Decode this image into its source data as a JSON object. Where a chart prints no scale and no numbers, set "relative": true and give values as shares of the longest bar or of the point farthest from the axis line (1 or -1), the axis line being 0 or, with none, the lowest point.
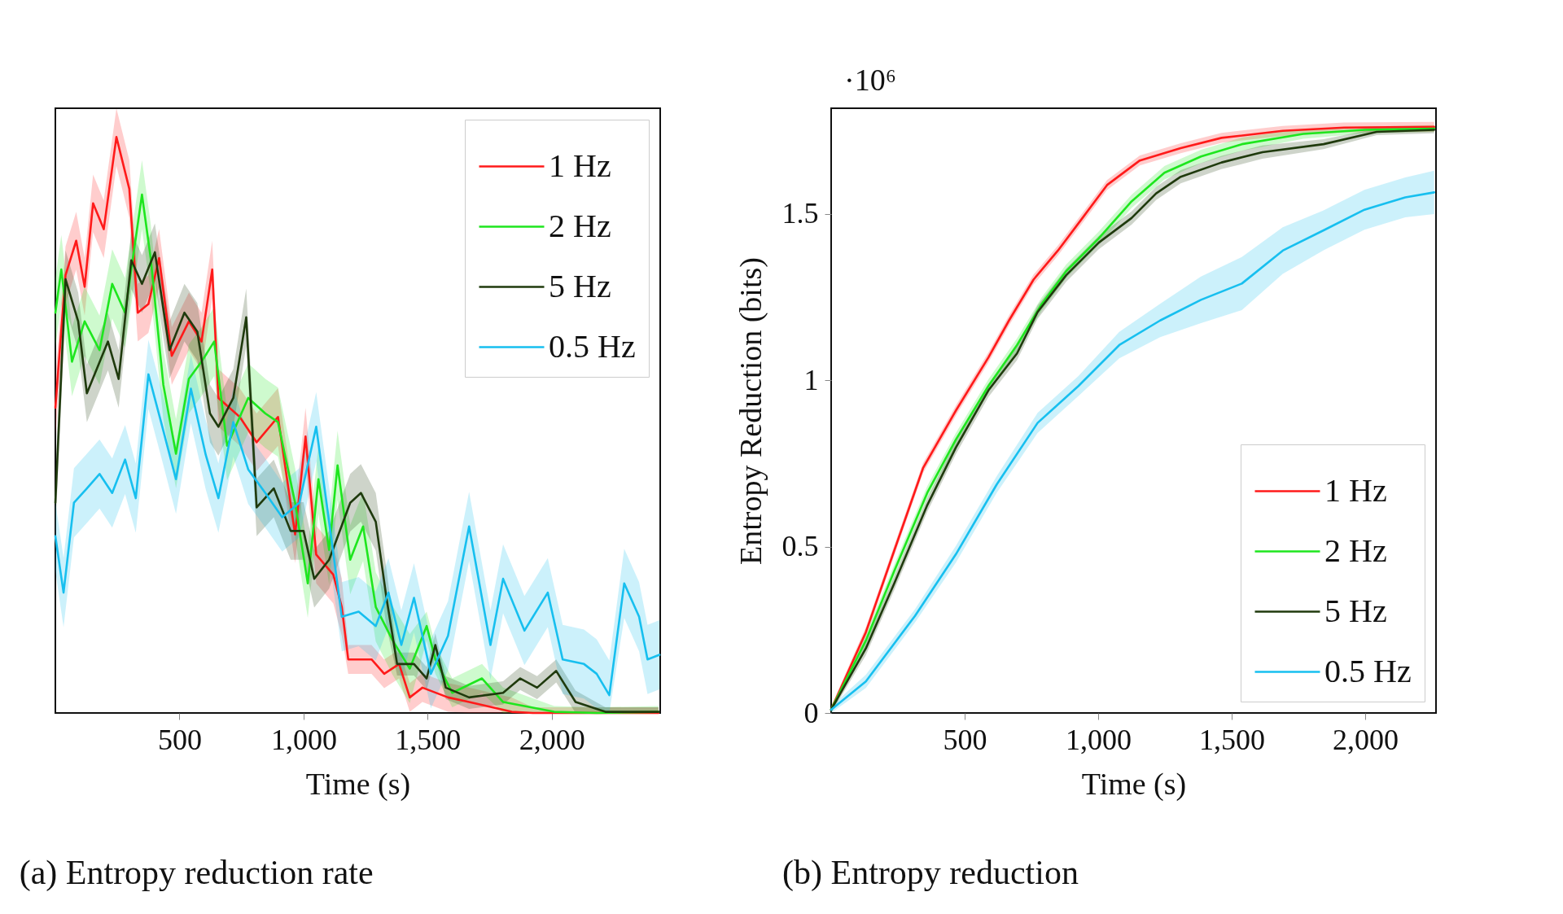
{
  "chart_data": [
    {
      "type": "line",
      "title": "(a) Entropy reduction rate",
      "xlabel": "Time (s)",
      "relative": true,
      "legend": "top right",
      "xlim": [
        0,
        2437
      ],
      "xticks": [
        {
          "value": 500,
          "label": "500"
        },
        {
          "value": 1000,
          "label": "1,000"
        },
        {
          "value": 1500,
          "label": "1,500"
        },
        {
          "value": 2000,
          "label": "2,000"
        }
      ],
      "series": [
        {
          "name": "1 Hz",
          "color": "#ff1a1a",
          "x": [
            0,
            41,
            84,
            118,
            152,
            195,
            246,
            298,
            332,
            375,
            418,
            469,
            538,
            589,
            632,
            657,
            743,
            811,
            897,
            966,
            1008,
            1051,
            1120,
            1154,
            1180,
            1274,
            1325,
            1385,
            1428,
            1479,
            1582,
            1667,
            1839,
            1924,
            2430
          ],
          "values": [
            0.53,
            0.76,
            0.82,
            0.74,
            0.885,
            0.84,
            1.0,
            0.91,
            0.695,
            0.71,
            0.79,
            0.62,
            0.68,
            0.645,
            0.77,
            0.547,
            0.514,
            0.47,
            0.514,
            0.31,
            0.48,
            0.275,
            0.24,
            0.184,
            0.093,
            0.093,
            0.068,
            0.085,
            0.027,
            0.044,
            0.027,
            0.019,
            0.002,
            0,
            0
          ],
          "lower": [
            0.48,
            0.71,
            0.77,
            0.69,
            0.835,
            0.79,
            0.95,
            0.86,
            0.645,
            0.66,
            0.74,
            0.57,
            0.63,
            0.595,
            0.72,
            0.497,
            0.464,
            0.42,
            0.464,
            0.26,
            0.43,
            0.225,
            0.19,
            0.134,
            0.068,
            0.068,
            0.043,
            0.06,
            0.002,
            0.019,
            0.002,
            0,
            0,
            0,
            0
          ],
          "upper": [
            0.58,
            0.81,
            0.87,
            0.79,
            0.935,
            0.89,
            1.05,
            0.96,
            0.745,
            0.76,
            0.84,
            0.67,
            0.73,
            0.695,
            0.82,
            0.597,
            0.564,
            0.52,
            0.564,
            0.36,
            0.53,
            0.325,
            0.29,
            0.234,
            0.118,
            0.118,
            0.093,
            0.11,
            0.052,
            0.069,
            0.052,
            0.044,
            0.027,
            0.01,
            0.01
          ]
        },
        {
          "name": "2 Hz",
          "color": "#1ee61e",
          "x": [
            0,
            24,
            67,
            118,
            178,
            229,
            281,
            349,
            384,
            435,
            486,
            538,
            589,
            640,
            692,
            777,
            846,
            897,
            966,
            1017,
            1060,
            1103,
            1137,
            1188,
            1240,
            1291,
            1359,
            1428,
            1496,
            1531,
            1599,
            1719,
            1804,
            2010,
            2181,
            2430
          ],
          "values": [
            0.695,
            0.77,
            0.61,
            0.68,
            0.63,
            0.745,
            0.695,
            0.9,
            0.79,
            0.57,
            0.45,
            0.58,
            0.61,
            0.645,
            0.464,
            0.547,
            0.52,
            0.505,
            0.365,
            0.225,
            0.406,
            0.283,
            0.43,
            0.266,
            0.324,
            0.184,
            0.126,
            0.077,
            0.151,
            0.093,
            0.035,
            0.06,
            0.019,
            0.002,
            0,
            0.002
          ],
          "lower": [
            0.635,
            0.71,
            0.55,
            0.62,
            0.57,
            0.685,
            0.635,
            0.84,
            0.73,
            0.51,
            0.39,
            0.52,
            0.55,
            0.585,
            0.404,
            0.487,
            0.46,
            0.445,
            0.305,
            0.165,
            0.346,
            0.223,
            0.37,
            0.206,
            0.264,
            0.124,
            0.066,
            0.017,
            0.126,
            0.068,
            0.01,
            0.035,
            0,
            0,
            0,
            0
          ],
          "upper": [
            0.755,
            0.83,
            0.67,
            0.74,
            0.69,
            0.805,
            0.755,
            0.96,
            0.85,
            0.63,
            0.51,
            0.64,
            0.67,
            0.705,
            0.524,
            0.607,
            0.58,
            0.565,
            0.425,
            0.285,
            0.466,
            0.343,
            0.49,
            0.326,
            0.384,
            0.244,
            0.186,
            0.137,
            0.176,
            0.118,
            0.06,
            0.085,
            0.044,
            0.012,
            0.01,
            0.012
          ]
        },
        {
          "name": "5 Hz",
          "color": "#1f3a0d",
          "x": [
            0,
            41,
            92,
            127,
            160,
            212,
            255,
            306,
            349,
            401,
            460,
            520,
            572,
            623,
            657,
            717,
            769,
            811,
            880,
            948,
            1000,
            1043,
            1103,
            1188,
            1231,
            1291,
            1334,
            1377,
            1445,
            1496,
            1531,
            1573,
            1667,
            1804,
            1873,
            1941,
            2018,
            2096,
            2216,
            2430
          ],
          "values": [
            0.365,
            0.753,
            0.68,
            0.555,
            0.59,
            0.645,
            0.58,
            0.786,
            0.745,
            0.8,
            0.63,
            0.695,
            0.662,
            0.52,
            0.497,
            0.547,
            0.687,
            0.357,
            0.39,
            0.316,
            0.316,
            0.233,
            0.266,
            0.365,
            0.382,
            0.332,
            0.2,
            0.085,
            0.085,
            0.06,
            0.118,
            0.044,
            0.027,
            0.035,
            0.06,
            0.044,
            0.073,
            0.019,
            0.002,
            0.002
          ],
          "lower": [
            0.315,
            0.703,
            0.63,
            0.505,
            0.54,
            0.595,
            0.53,
            0.736,
            0.695,
            0.75,
            0.58,
            0.645,
            0.612,
            0.47,
            0.447,
            0.497,
            0.637,
            0.307,
            0.34,
            0.266,
            0.266,
            0.183,
            0.216,
            0.315,
            0.332,
            0.282,
            0.15,
            0.065,
            0.065,
            0.04,
            0.098,
            0.024,
            0.007,
            0.015,
            0.04,
            0.024,
            0.053,
            0,
            0,
            0
          ],
          "upper": [
            0.415,
            0.803,
            0.73,
            0.605,
            0.64,
            0.695,
            0.63,
            0.836,
            0.795,
            0.85,
            0.68,
            0.745,
            0.712,
            0.57,
            0.547,
            0.597,
            0.737,
            0.407,
            0.44,
            0.366,
            0.366,
            0.283,
            0.316,
            0.415,
            0.432,
            0.382,
            0.25,
            0.105,
            0.105,
            0.08,
            0.138,
            0.064,
            0.047,
            0.055,
            0.08,
            0.064,
            0.093,
            0.039,
            0.01,
            0.01
          ]
        },
        {
          "name": "0.5 Hz",
          "color": "#17bfef",
          "x": [
            0,
            33,
            75,
            127,
            178,
            229,
            281,
            324,
            375,
            426,
            486,
            546,
            606,
            657,
            717,
            777,
            846,
            914,
            983,
            1051,
            1103,
            1154,
            1222,
            1291,
            1342,
            1394,
            1445,
            1513,
            1582,
            1667,
            1753,
            1804,
            1890,
            1984,
            2044,
            2130,
            2181,
            2232,
            2292,
            2352,
            2386,
            2434
          ],
          "values": [
            0.307,
            0.209,
            0.365,
            0.39,
            0.415,
            0.382,
            0.44,
            0.373,
            0.588,
            0.505,
            0.406,
            0.563,
            0.448,
            0.373,
            0.505,
            0.423,
            0.382,
            0.34,
            0.365,
            0.497,
            0.332,
            0.167,
            0.176,
            0.151,
            0.209,
            0.118,
            0.2,
            0.068,
            0.134,
            0.324,
            0.118,
            0.233,
            0.143,
            0.209,
            0.093,
            0.085,
            0.068,
            0.031,
            0.225,
            0.167,
            0.093,
            0.101
          ],
          "lower": [
            0.247,
            0.149,
            0.305,
            0.33,
            0.355,
            0.322,
            0.38,
            0.313,
            0.528,
            0.445,
            0.346,
            0.503,
            0.388,
            0.313,
            0.445,
            0.363,
            0.322,
            0.28,
            0.305,
            0.437,
            0.272,
            0.107,
            0.116,
            0.091,
            0.149,
            0.058,
            0.14,
            0.008,
            0.074,
            0.264,
            0.058,
            0.173,
            0.083,
            0.149,
            0.033,
            0.025,
            0.008,
            0,
            0.165,
            0.107,
            0.033,
            0.041
          ],
          "upper": [
            0.367,
            0.269,
            0.425,
            0.45,
            0.475,
            0.442,
            0.5,
            0.433,
            0.648,
            0.565,
            0.466,
            0.623,
            0.508,
            0.433,
            0.565,
            0.483,
            0.442,
            0.4,
            0.425,
            0.557,
            0.392,
            0.227,
            0.236,
            0.211,
            0.269,
            0.178,
            0.26,
            0.128,
            0.194,
            0.384,
            0.178,
            0.293,
            0.203,
            0.269,
            0.153,
            0.145,
            0.128,
            0.091,
            0.285,
            0.227,
            0.153,
            0.161
          ]
        }
      ]
    },
    {
      "type": "line",
      "title": "(b) Entropy reduction",
      "xlabel": "Time (s)",
      "ylabel": "Entropy Reduction (bits)",
      "annotations": [
        "·10⁶"
      ],
      "legend": "bottom right",
      "xlim": [
        0,
        2265
      ],
      "xticks": [
        {
          "value": 500,
          "label": "500"
        },
        {
          "value": 1000,
          "label": "1,000"
        },
        {
          "value": 1500,
          "label": "1,500"
        },
        {
          "value": 2000,
          "label": "2,000"
        }
      ],
      "ylim": [
        0,
        1.818
      ],
      "yticks": [
        0,
        0.5,
        1,
        1.5
      ],
      "series": [
        {
          "name": "1 Hz",
          "color": "#ff1a1a",
          "x": [
            0,
            130,
            237,
            344,
            467,
            589,
            666,
            758,
            849,
            941,
            1033,
            1156,
            1309,
            1462,
            1691,
            1921,
            2258
          ],
          "values": [
            0.01,
            0.243,
            0.49,
            0.736,
            0.909,
            1.069,
            1.18,
            1.303,
            1.39,
            1.488,
            1.587,
            1.661,
            1.698,
            1.729,
            1.75,
            1.76,
            1.762
          ],
          "lower": [
            0,
            0.228,
            0.475,
            0.721,
            0.894,
            1.054,
            1.165,
            1.288,
            1.375,
            1.473,
            1.572,
            1.646,
            1.683,
            1.714,
            1.735,
            1.745,
            1.747
          ],
          "upper": [
            0.02,
            0.258,
            0.505,
            0.751,
            0.924,
            1.084,
            1.195,
            1.318,
            1.405,
            1.503,
            1.602,
            1.676,
            1.713,
            1.744,
            1.765,
            1.775,
            1.777
          ]
        },
        {
          "name": "2 Hz",
          "color": "#1ee61e",
          "x": [
            0,
            130,
            237,
            360,
            467,
            589,
            696,
            788,
            880,
            1002,
            1125,
            1248,
            1385,
            1538,
            1768,
            2000,
            2258
          ],
          "values": [
            0.01,
            0.218,
            0.428,
            0.662,
            0.822,
            0.983,
            1.106,
            1.229,
            1.328,
            1.427,
            1.538,
            1.624,
            1.673,
            1.71,
            1.741,
            1.753,
            1.757
          ],
          "lower": [
            0,
            0.198,
            0.408,
            0.642,
            0.802,
            0.963,
            1.086,
            1.209,
            1.308,
            1.407,
            1.518,
            1.604,
            1.653,
            1.69,
            1.726,
            1.743,
            1.747
          ],
          "upper": [
            0.02,
            0.238,
            0.448,
            0.682,
            0.842,
            1.003,
            1.126,
            1.249,
            1.348,
            1.447,
            1.558,
            1.644,
            1.693,
            1.73,
            1.756,
            1.763,
            1.767
          ]
        },
        {
          "name": "5 Hz",
          "color": "#1f3a0d",
          "x": [
            0,
            130,
            237,
            360,
            467,
            589,
            696,
            773,
            880,
            1002,
            1125,
            1217,
            1309,
            1462,
            1615,
            1844,
            2043,
            2258
          ],
          "values": [
            0.01,
            0.194,
            0.391,
            0.625,
            0.798,
            0.97,
            1.081,
            1.205,
            1.316,
            1.414,
            1.488,
            1.562,
            1.612,
            1.655,
            1.686,
            1.71,
            1.747,
            1.753
          ],
          "lower": [
            0,
            0.174,
            0.371,
            0.605,
            0.778,
            0.95,
            1.061,
            1.185,
            1.296,
            1.394,
            1.468,
            1.542,
            1.592,
            1.635,
            1.666,
            1.695,
            1.737,
            1.743
          ],
          "upper": [
            0.02,
            0.214,
            0.411,
            0.645,
            0.818,
            0.99,
            1.101,
            1.225,
            1.336,
            1.434,
            1.508,
            1.582,
            1.632,
            1.675,
            1.706,
            1.725,
            1.757,
            1.763
          ]
        },
        {
          "name": "0.5 Hz",
          "color": "#17bfef",
          "x": [
            0,
            130,
            314,
            467,
            620,
            773,
            926,
            1079,
            1232,
            1385,
            1538,
            1691,
            1844,
            1997,
            2150,
            2258
          ],
          "values": [
            0.01,
            0.095,
            0.292,
            0.477,
            0.687,
            0.872,
            0.983,
            1.106,
            1.18,
            1.242,
            1.291,
            1.39,
            1.451,
            1.513,
            1.55,
            1.565
          ],
          "lower": [
            0,
            0.075,
            0.272,
            0.452,
            0.662,
            0.842,
            0.953,
            1.066,
            1.13,
            1.172,
            1.211,
            1.32,
            1.391,
            1.453,
            1.49,
            1.5
          ],
          "upper": [
            0.02,
            0.115,
            0.312,
            0.502,
            0.712,
            0.902,
            1.013,
            1.146,
            1.23,
            1.312,
            1.371,
            1.46,
            1.511,
            1.573,
            1.61,
            1.63
          ]
        }
      ]
    }
  ]
}
